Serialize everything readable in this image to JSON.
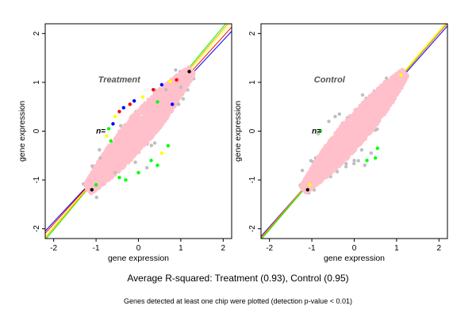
{
  "captions": {
    "main": "Average R-squared: Treatment (0.93), Control (0.95)",
    "sub": "Genes detected at least one chip were plotted (detection p-value < 0.01)"
  },
  "chart_data": [
    {
      "type": "scatter",
      "title": "Treatment",
      "overlay_text": "n=",
      "xlabel": "gene expression",
      "ylabel": "gene expression",
      "xlim": [
        -2.2,
        2.2
      ],
      "ylim": [
        -2.2,
        2.2
      ],
      "xticks": [
        -2,
        -1,
        0,
        1,
        2
      ],
      "yticks": [
        -2,
        -1,
        0,
        1,
        2
      ],
      "grid": false,
      "legend": "none",
      "point_cloud": {
        "color": "#ffc0cb",
        "center": [
          0,
          0
        ],
        "along_diagonal_extent": [
          -1.2,
          1.25
        ],
        "across_diagonal_halfwidth": 0.32
      },
      "fit_lines": [
        {
          "color": "#0000ff",
          "slope": 0.93,
          "intercept": 0.0
        },
        {
          "color": "#ff0000",
          "slope": 0.96,
          "intercept": 0.02
        },
        {
          "color": "#ffff00",
          "slope": 1.0,
          "intercept": 0.04
        },
        {
          "color": "#00ff00",
          "slope": 1.04,
          "intercept": 0.06
        },
        {
          "color": "#ffa500",
          "slope": 1.02,
          "intercept": 0.05
        }
      ],
      "outliers": [
        {
          "x": 0.35,
          "y": 0.85,
          "color": "#ff0000"
        },
        {
          "x": 0.55,
          "y": 0.95,
          "color": "#0000ff"
        },
        {
          "x": 0.9,
          "y": 1.05,
          "color": "#ff0000"
        },
        {
          "x": 1.2,
          "y": 1.22,
          "color": "#000000"
        },
        {
          "x": 0.75,
          "y": 1.02,
          "color": "#ffff00"
        },
        {
          "x": -0.2,
          "y": 0.55,
          "color": "#ff0000"
        },
        {
          "x": -0.45,
          "y": 0.4,
          "color": "#ff0000"
        },
        {
          "x": -0.35,
          "y": 0.48,
          "color": "#0000ff"
        },
        {
          "x": 0.1,
          "y": 0.7,
          "color": "#ffff00"
        },
        {
          "x": -0.6,
          "y": 0.15,
          "color": "#0000ff"
        },
        {
          "x": -0.7,
          "y": 0.05,
          "color": "#00ff00"
        },
        {
          "x": -0.75,
          "y": -0.1,
          "color": "#ffff00"
        },
        {
          "x": -0.65,
          "y": -0.2,
          "color": "#00ff00"
        },
        {
          "x": -1.1,
          "y": -1.2,
          "color": "#000000"
        },
        {
          "x": -1.0,
          "y": -1.1,
          "color": "#00ff00"
        },
        {
          "x": -0.45,
          "y": -0.95,
          "color": "#00ff00"
        },
        {
          "x": -0.3,
          "y": -1.0,
          "color": "#00ff00"
        },
        {
          "x": 0.0,
          "y": -0.85,
          "color": "#00ff00"
        },
        {
          "x": 0.45,
          "y": -0.7,
          "color": "#00ff00"
        },
        {
          "x": 0.3,
          "y": -0.6,
          "color": "#00ff00"
        },
        {
          "x": 0.55,
          "y": -0.45,
          "color": "#ffff00"
        },
        {
          "x": 0.7,
          "y": -0.3,
          "color": "#00ff00"
        },
        {
          "x": 0.8,
          "y": 0.55,
          "color": "#0000ff"
        },
        {
          "x": 0.45,
          "y": 0.6,
          "color": "#00ff00"
        },
        {
          "x": -0.1,
          "y": 0.62,
          "color": "#0000ff"
        },
        {
          "x": -0.55,
          "y": 0.3,
          "color": "#ffff00"
        },
        {
          "x": 0.2,
          "y": -0.75,
          "color": "#bebebe"
        },
        {
          "x": 1.0,
          "y": 0.9,
          "color": "#bebebe"
        },
        {
          "x": -0.9,
          "y": -0.55,
          "color": "#bebebe"
        },
        {
          "x": -0.55,
          "y": -0.85,
          "color": "#bebebe"
        },
        {
          "x": 0.65,
          "y": 0.85,
          "color": "#bebebe"
        },
        {
          "x": 0.95,
          "y": 0.55,
          "color": "#bebebe"
        }
      ]
    },
    {
      "type": "scatter",
      "title": "Control",
      "overlay_text": "n=",
      "xlabel": "gene expression",
      "ylabel": "gene expression",
      "xlim": [
        -2.2,
        2.2
      ],
      "ylim": [
        -2.2,
        2.2
      ],
      "xticks": [
        -2,
        -1,
        0,
        1,
        2
      ],
      "yticks": [
        -2,
        -1,
        0,
        1,
        2
      ],
      "grid": false,
      "legend": "none",
      "point_cloud": {
        "color": "#ffc0cb",
        "center": [
          0,
          0
        ],
        "along_diagonal_extent": [
          -1.2,
          1.2
        ],
        "across_diagonal_halfwidth": 0.3
      },
      "fit_lines": [
        {
          "color": "#0000ff",
          "slope": 0.98,
          "intercept": 0.0
        },
        {
          "color": "#ff0000",
          "slope": 1.0,
          "intercept": 0.01
        },
        {
          "color": "#ffff00",
          "slope": 1.02,
          "intercept": 0.02
        },
        {
          "color": "#00ff00",
          "slope": 1.01,
          "intercept": 0.0
        },
        {
          "color": "#ffa500",
          "slope": 1.0,
          "intercept": 0.02
        }
      ],
      "outliers": [
        {
          "x": 0.55,
          "y": -0.35,
          "color": "#00ff00"
        },
        {
          "x": 0.5,
          "y": -0.55,
          "color": "#00ff00"
        },
        {
          "x": 0.3,
          "y": -0.6,
          "color": "#00ff00"
        },
        {
          "x": -1.05,
          "y": -1.1,
          "color": "#ffff00"
        },
        {
          "x": -1.1,
          "y": -1.2,
          "color": "#000000"
        },
        {
          "x": -0.8,
          "y": 0.0,
          "color": "#00ff00"
        },
        {
          "x": -0.85,
          "y": -0.05,
          "color": "#bebebe"
        },
        {
          "x": -0.6,
          "y": 0.2,
          "color": "#bebebe"
        },
        {
          "x": 0.25,
          "y": -0.7,
          "color": "#bebebe"
        },
        {
          "x": 0.4,
          "y": -0.45,
          "color": "#bebebe"
        },
        {
          "x": -0.45,
          "y": 0.3,
          "color": "#bebebe"
        },
        {
          "x": 1.1,
          "y": 1.15,
          "color": "#ffff00"
        },
        {
          "x": -0.35,
          "y": 0.35,
          "color": "#bebebe"
        },
        {
          "x": 0.0,
          "y": -0.6,
          "color": "#bebebe"
        }
      ]
    }
  ]
}
